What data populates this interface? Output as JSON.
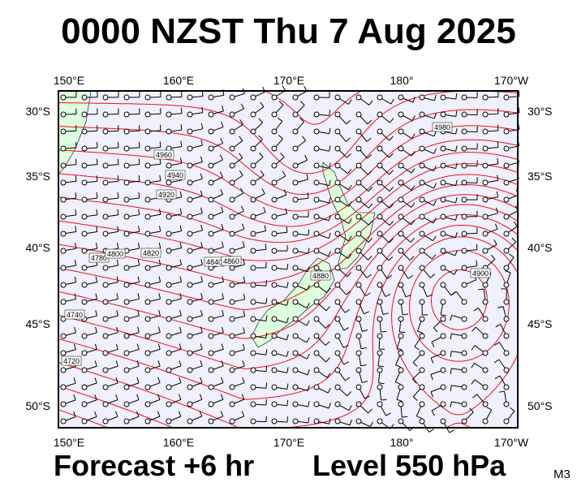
{
  "title": "0000 NZST Thu 7 Aug 2025",
  "map": {
    "top_labels": [
      "150°E",
      "160°E",
      "170°E",
      "180°",
      "170°W"
    ],
    "bottom_labels": [
      "150°E",
      "160°E",
      "170°E",
      "180°",
      "170°W"
    ],
    "left_labels": [
      "30°S",
      "35°S",
      "40°S",
      "45°S",
      "50°S"
    ],
    "right_labels": [
      "30°S",
      "35°S",
      "40°S",
      "45°S",
      "50°S"
    ],
    "contour_labels": [
      "4960",
      "4940",
      "4920",
      "4780",
      "4800",
      "4820",
      "4840",
      "4860",
      "4880",
      "4740",
      "4720",
      "4980",
      "4900"
    ]
  },
  "footer": {
    "forecast": "Forecast +6 hr",
    "level": "Level 550 hPa",
    "code": "M3"
  }
}
